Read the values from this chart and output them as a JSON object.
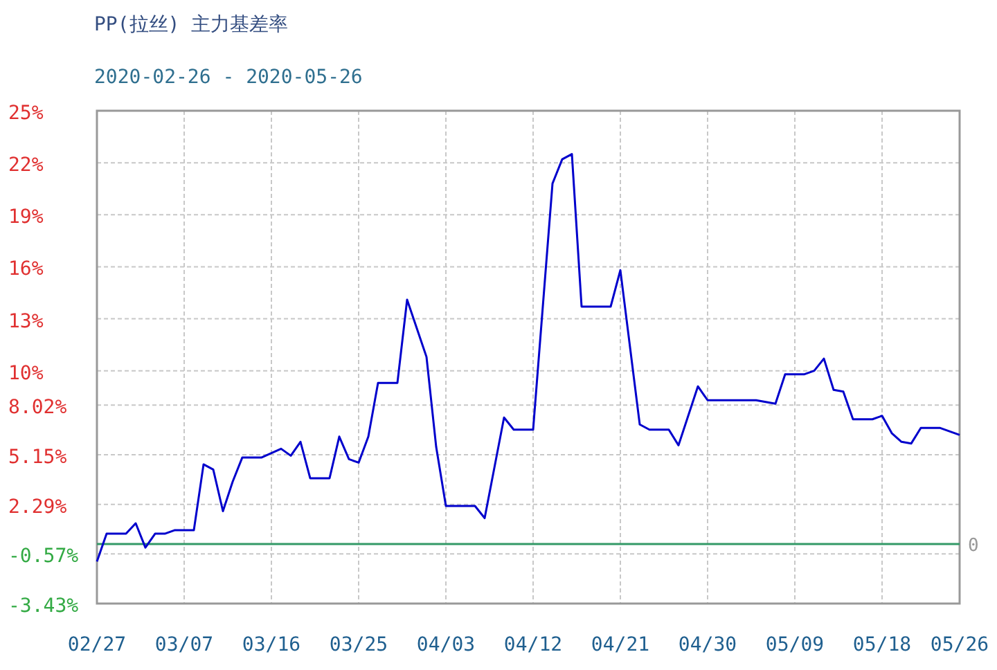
{
  "chart_data": {
    "type": "line",
    "title": "PP(拉丝) 主力基差率",
    "subtitle": "2020-02-26 - 2020-05-26",
    "x": [
      "2020-02-27",
      "2020-02-28",
      "2020-03-01",
      "2020-03-02",
      "2020-03-03",
      "2020-03-04",
      "2020-03-05",
      "2020-03-06",
      "2020-03-08",
      "2020-03-09",
      "2020-03-10",
      "2020-03-11",
      "2020-03-12",
      "2020-03-13",
      "2020-03-15",
      "2020-03-17",
      "2020-03-18",
      "2020-03-19",
      "2020-03-20",
      "2020-03-22",
      "2020-03-23",
      "2020-03-24",
      "2020-03-25",
      "2020-03-26",
      "2020-03-27",
      "2020-03-29",
      "2020-03-30",
      "2020-04-01",
      "2020-04-02",
      "2020-04-03",
      "2020-04-06",
      "2020-04-07",
      "2020-04-09",
      "2020-04-10",
      "2020-04-12",
      "2020-04-14",
      "2020-04-15",
      "2020-04-16",
      "2020-04-17",
      "2020-04-20",
      "2020-04-21",
      "2020-04-23",
      "2020-04-24",
      "2020-04-26",
      "2020-04-27",
      "2020-04-29",
      "2020-04-30",
      "2020-05-05",
      "2020-05-07",
      "2020-05-08",
      "2020-05-10",
      "2020-05-11",
      "2020-05-12",
      "2020-05-13",
      "2020-05-14",
      "2020-05-15",
      "2020-05-17",
      "2020-05-18",
      "2020-05-19",
      "2020-05-20",
      "2020-05-21",
      "2020-05-22",
      "2020-05-24",
      "2020-05-26"
    ],
    "series": [
      {
        "color": "#0000cc",
        "values": [
          -1.0,
          0.6,
          0.6,
          1.2,
          -0.2,
          0.6,
          0.6,
          0.8,
          0.8,
          4.6,
          4.3,
          1.9,
          3.6,
          5.0,
          5.0,
          5.5,
          5.1,
          5.9,
          3.8,
          3.8,
          6.2,
          4.9,
          4.7,
          6.2,
          9.3,
          9.3,
          14.1,
          10.8,
          5.6,
          2.2,
          2.2,
          1.5,
          7.3,
          6.6,
          6.6,
          20.8,
          22.2,
          22.5,
          13.7,
          13.7,
          15.8,
          6.9,
          6.6,
          6.6,
          5.7,
          9.1,
          8.3,
          8.3,
          8.1,
          9.8,
          9.8,
          10.0,
          10.7,
          8.9,
          8.8,
          7.2,
          7.2,
          7.4,
          6.4,
          5.9,
          5.8,
          6.7,
          6.7,
          6.3
        ]
      }
    ],
    "xlim": [
      "2020-02-27",
      "2020-05-26"
    ],
    "xticks": [
      {
        "value": "2020-02-27",
        "label": "02/27"
      },
      {
        "value": "2020-03-07",
        "label": "03/07"
      },
      {
        "value": "2020-03-16",
        "label": "03/16"
      },
      {
        "value": "2020-03-25",
        "label": "03/25"
      },
      {
        "value": "2020-04-03",
        "label": "04/03"
      },
      {
        "value": "2020-04-12",
        "label": "04/12"
      },
      {
        "value": "2020-04-21",
        "label": "04/21"
      },
      {
        "value": "2020-04-30",
        "label": "04/30"
      },
      {
        "value": "2020-05-09",
        "label": "05/09"
      },
      {
        "value": "2020-05-18",
        "label": "05/18"
      },
      {
        "value": "2020-05-26",
        "label": "05/26"
      }
    ],
    "ylim": [
      -3.43,
      25
    ],
    "yticks": [
      {
        "value": -3.43,
        "label": "-3.43%"
      },
      {
        "value": -0.57,
        "label": "-0.57%"
      },
      {
        "value": 2.29,
        "label": "2.29%"
      },
      {
        "value": 5.15,
        "label": "5.15%"
      },
      {
        "value": 8.02,
        "label": "8.02%"
      },
      {
        "value": 10,
        "label": "10%"
      },
      {
        "value": 13,
        "label": "13%"
      },
      {
        "value": 16,
        "label": "16%"
      },
      {
        "value": 19,
        "label": "19%"
      },
      {
        "value": 22,
        "label": "22%"
      },
      {
        "value": 25,
        "label": "25%"
      }
    ],
    "grid": true,
    "ref_lines": [
      {
        "axis": "y",
        "value": 0,
        "label": "0",
        "color": "#339966"
      }
    ]
  }
}
